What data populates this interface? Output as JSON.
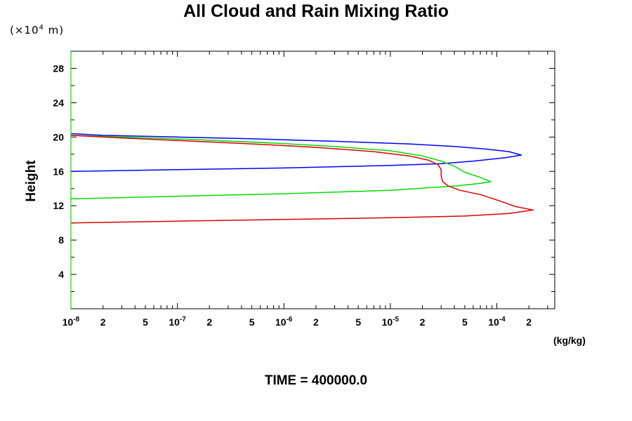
{
  "chart_data": {
    "type": "line",
    "title": "All Cloud and Rain Mixing Ratio",
    "ylabel": "Height",
    "yunit": {
      "prefix": "(×10",
      "exp": "4",
      "suffix": " m)"
    },
    "xunit": "(kg/kg)",
    "xscale": "log",
    "xlim": [
      1e-08,
      0.00035
    ],
    "ylim": [
      0,
      30
    ],
    "yticks": [
      4,
      8,
      12,
      16,
      20,
      24,
      28
    ],
    "xticks_major": [
      {
        "value": 1e-08,
        "base": "10",
        "exp": "-8"
      },
      {
        "value": 1e-07,
        "base": "10",
        "exp": "-7"
      },
      {
        "value": 1e-06,
        "base": "10",
        "exp": "-6"
      },
      {
        "value": 1e-05,
        "base": "10",
        "exp": "-5"
      },
      {
        "value": 0.0001,
        "base": "10",
        "exp": "-4"
      }
    ],
    "xticks_minor_labeled": [
      {
        "value": 2e-08,
        "label": "2"
      },
      {
        "value": 5e-08,
        "label": "5"
      },
      {
        "value": 2e-07,
        "label": "2"
      },
      {
        "value": 5e-07,
        "label": "5"
      },
      {
        "value": 2e-06,
        "label": "2"
      },
      {
        "value": 5e-06,
        "label": "5"
      },
      {
        "value": 2e-05,
        "label": "2"
      },
      {
        "value": 5e-05,
        "label": "5"
      },
      {
        "value": 0.0002,
        "label": "2"
      }
    ],
    "grid": false,
    "legend": "none",
    "series": [
      {
        "color": "#0000ff",
        "points": [
          [
            1e-08,
            16.0
          ],
          [
            1e-07,
            16.2
          ],
          [
            1e-06,
            16.4
          ],
          [
            1e-05,
            16.7
          ],
          [
            3e-05,
            16.9
          ],
          [
            6e-05,
            17.2
          ],
          [
            0.00012,
            17.6
          ],
          [
            0.00017,
            17.9
          ],
          [
            0.00013,
            18.3
          ],
          [
            8e-05,
            18.6
          ],
          [
            4e-05,
            18.9
          ],
          [
            1.5e-05,
            19.2
          ],
          [
            3e-06,
            19.5
          ],
          [
            5e-07,
            19.8
          ],
          [
            1e-07,
            20.0
          ],
          [
            2e-08,
            20.2
          ],
          [
            1e-08,
            20.4
          ]
        ]
      },
      {
        "color": "#00dd00",
        "points": [
          [
            1e-08,
            12.8
          ],
          [
            1e-07,
            13.1
          ],
          [
            1e-06,
            13.4
          ],
          [
            1e-05,
            13.8
          ],
          [
            4e-05,
            14.3
          ],
          [
            7e-05,
            14.6
          ],
          [
            8.8e-05,
            14.8
          ],
          [
            7e-05,
            15.3
          ],
          [
            5e-05,
            15.9
          ],
          [
            4e-05,
            16.6
          ],
          [
            3e-05,
            17.2
          ],
          [
            2e-05,
            17.8
          ],
          [
            1e-05,
            18.4
          ],
          [
            3e-06,
            18.9
          ],
          [
            8e-07,
            19.3
          ],
          [
            1.5e-07,
            19.7
          ],
          [
            3e-08,
            20.0
          ],
          [
            1e-08,
            20.2
          ]
        ]
      },
      {
        "color": "#dd0000",
        "points": [
          [
            1e-08,
            10.0
          ],
          [
            1e-07,
            10.2
          ],
          [
            1e-06,
            10.4
          ],
          [
            1e-05,
            10.6
          ],
          [
            5e-05,
            10.8
          ],
          [
            0.00013,
            11.1
          ],
          [
            0.00022,
            11.5
          ],
          [
            0.00015,
            11.9
          ],
          [
            0.00011,
            12.5
          ],
          [
            7e-05,
            13.3
          ],
          [
            4.5e-05,
            13.8
          ],
          [
            3.5e-05,
            14.3
          ],
          [
            3.1e-05,
            14.8
          ],
          [
            3e-05,
            15.5
          ],
          [
            3e-05,
            16.2
          ],
          [
            2.8e-05,
            16.8
          ],
          [
            2.3e-05,
            17.3
          ],
          [
            1.5e-05,
            17.8
          ],
          [
            7e-06,
            18.3
          ],
          [
            2e-06,
            18.8
          ],
          [
            5e-07,
            19.2
          ],
          [
            1e-07,
            19.6
          ],
          [
            3e-08,
            19.9
          ],
          [
            1e-08,
            20.2
          ]
        ]
      }
    ]
  },
  "footer": "TIME = 400000.0"
}
